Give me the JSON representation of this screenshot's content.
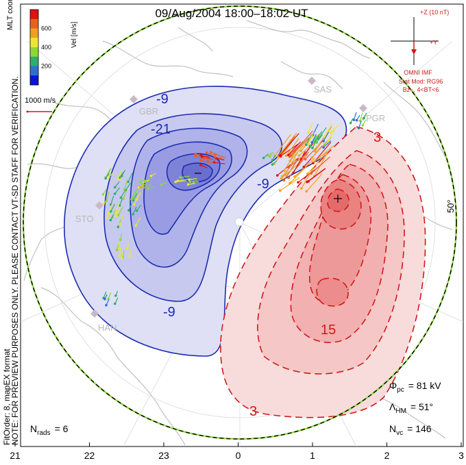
{
  "chart_data": {
    "type": "contour-map",
    "title": "09/Aug/2004 18:00–18:02 UT",
    "coordinates_label": "MLT coordinates",
    "colorbar": {
      "label": "Vel [m/s]",
      "ticks": [
        "200",
        "400",
        "600"
      ],
      "colors": [
        "#0a14d6",
        "#2f6fd0",
        "#2fae6b",
        "#8fd63a",
        "#e8e830",
        "#f0a020",
        "#e86020",
        "#e01010"
      ]
    },
    "scale_vector_label": "1000 m/s",
    "imf": {
      "z_label": "+Z (10 nT)",
      "y_label": "+Y",
      "source_label": "OMNI IMF",
      "model_label": "Stat Mod: RG96",
      "condition_label": "Bz−, 4<BT<6"
    },
    "stations": [
      "SAS",
      "PGR",
      "GBR",
      "STO",
      "HAN"
    ],
    "latitude_label": "50°",
    "negative_contour_labels": [
      "-9",
      "-21",
      "-9",
      "-9"
    ],
    "positive_contour_labels": [
      "3",
      "15",
      "3"
    ],
    "mlt_ticks": [
      "21",
      "22",
      "23",
      "0",
      "1",
      "2",
      "3"
    ],
    "stats": {
      "phi_pc_label": "Φ",
      "phi_pc_sub": "pc",
      "phi_pc_value": "= 81 kV",
      "lambda_hm_label": "Λ",
      "lambda_hm_sub": "HM",
      "lambda_hm_value": "= 51°",
      "n_vc_label": "N",
      "n_vc_sub": "vc",
      "n_vc_value": "= 146",
      "n_rads_label": "N",
      "n_rads_sub": "rads",
      "n_rads_value": "= 6"
    },
    "side_note": "NOTE: FOR PREVIEW PURPOSES ONLY. PLEASE CONTACT VT-SD STAFF FOR VERIFICATION.",
    "fit_order": "FitOrder: 8, mapEX format"
  }
}
